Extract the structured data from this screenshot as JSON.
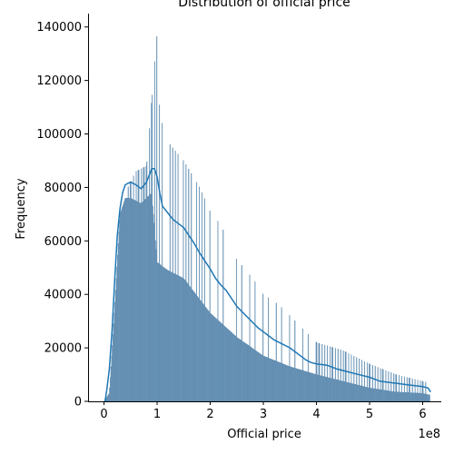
{
  "chart_data": {
    "type": "histogram",
    "title": "Distribution of official price",
    "xlabel": "Official price",
    "ylabel": "Frequency",
    "x_offset_label": "1e8",
    "xlim": [
      -0.3,
      6.35
    ],
    "ylim": [
      0,
      145000
    ],
    "x_ticks": [
      0,
      1,
      2,
      3,
      4,
      5,
      6
    ],
    "x_tick_labels": [
      "0",
      "1",
      "2",
      "3",
      "4",
      "5",
      "6"
    ],
    "y_ticks": [
      0,
      20000,
      40000,
      60000,
      80000,
      100000,
      120000,
      140000
    ],
    "y_tick_labels": [
      "0",
      "20000",
      "40000",
      "60000",
      "80000",
      "100000",
      "120000",
      "140000"
    ],
    "bar_color": "#6b93b5",
    "bar_edge_color": "#4c7fa8",
    "kde_color": "#1f77b4",
    "grid": false,
    "spines": [
      "left",
      "bottom"
    ],
    "base_profile_points": [
      [
        0.0,
        0
      ],
      [
        0.1,
        3000
      ],
      [
        0.2,
        35000
      ],
      [
        0.3,
        70000
      ],
      [
        0.4,
        76000
      ],
      [
        0.5,
        76000
      ],
      [
        0.6,
        75000
      ],
      [
        0.7,
        74000
      ],
      [
        0.8,
        76000
      ],
      [
        0.9,
        78000
      ],
      [
        1.0,
        52000
      ],
      [
        1.2,
        49000
      ],
      [
        1.5,
        46000
      ],
      [
        2.0,
        33000
      ],
      [
        2.5,
        24000
      ],
      [
        3.0,
        17000
      ],
      [
        3.5,
        13000
      ],
      [
        4.0,
        10000
      ],
      [
        4.5,
        7500
      ],
      [
        5.0,
        5000
      ],
      [
        5.5,
        3500
      ],
      [
        6.0,
        3000
      ],
      [
        6.1,
        2500
      ]
    ],
    "spike_profile_points": [
      [
        0.45,
        80000
      ],
      [
        0.6,
        86000
      ],
      [
        0.8,
        88000
      ],
      [
        1.0,
        138000
      ],
      [
        1.05,
        107000
      ],
      [
        1.2,
        97000
      ],
      [
        1.5,
        90000
      ],
      [
        1.8,
        80000
      ],
      [
        2.0,
        71000
      ],
      [
        2.2,
        66000
      ],
      [
        2.5,
        53000
      ],
      [
        2.8,
        46000
      ],
      [
        3.0,
        40000
      ],
      [
        3.3,
        36000
      ],
      [
        3.6,
        30000
      ],
      [
        4.0,
        22000
      ],
      [
        4.5,
        19000
      ],
      [
        5.0,
        14000
      ],
      [
        5.5,
        10000
      ],
      [
        6.0,
        7500
      ],
      [
        6.1,
        7000
      ]
    ],
    "spike_spacing": 0.05,
    "kde_points": [
      [
        0.02,
        0
      ],
      [
        0.05,
        4000
      ],
      [
        0.1,
        12000
      ],
      [
        0.15,
        26000
      ],
      [
        0.2,
        45000
      ],
      [
        0.25,
        62000
      ],
      [
        0.3,
        72000
      ],
      [
        0.35,
        78000
      ],
      [
        0.4,
        81000
      ],
      [
        0.5,
        82000
      ],
      [
        0.6,
        81000
      ],
      [
        0.7,
        79500
      ],
      [
        0.8,
        82000
      ],
      [
        0.9,
        87000
      ],
      [
        0.95,
        87000
      ],
      [
        1.0,
        84000
      ],
      [
        1.05,
        78000
      ],
      [
        1.1,
        73000
      ],
      [
        1.2,
        70500
      ],
      [
        1.3,
        68000
      ],
      [
        1.4,
        66500
      ],
      [
        1.5,
        65000
      ],
      [
        1.6,
        62000
      ],
      [
        1.7,
        59000
      ],
      [
        1.8,
        55500
      ],
      [
        1.9,
        52500
      ],
      [
        2.0,
        49500
      ],
      [
        2.1,
        46000
      ],
      [
        2.2,
        43500
      ],
      [
        2.3,
        41500
      ],
      [
        2.4,
        38500
      ],
      [
        2.5,
        35500
      ],
      [
        2.6,
        33500
      ],
      [
        2.7,
        31500
      ],
      [
        2.8,
        29500
      ],
      [
        2.9,
        27500
      ],
      [
        3.0,
        26000
      ],
      [
        3.1,
        24500
      ],
      [
        3.2,
        23000
      ],
      [
        3.3,
        22000
      ],
      [
        3.4,
        21000
      ],
      [
        3.5,
        20000
      ],
      [
        3.6,
        18500
      ],
      [
        3.7,
        17000
      ],
      [
        3.8,
        15500
      ],
      [
        3.9,
        14500
      ],
      [
        4.0,
        14000
      ],
      [
        4.2,
        13500
      ],
      [
        4.4,
        12000
      ],
      [
        4.6,
        11000
      ],
      [
        4.8,
        10000
      ],
      [
        5.0,
        9000
      ],
      [
        5.2,
        7500
      ],
      [
        5.4,
        7000
      ],
      [
        5.6,
        6500
      ],
      [
        5.8,
        6000
      ],
      [
        6.0,
        5500
      ],
      [
        6.1,
        5000
      ],
      [
        6.15,
        3500
      ]
    ],
    "bins": {
      "start": 0.0,
      "end": 6.14,
      "width": 0.0125
    }
  }
}
